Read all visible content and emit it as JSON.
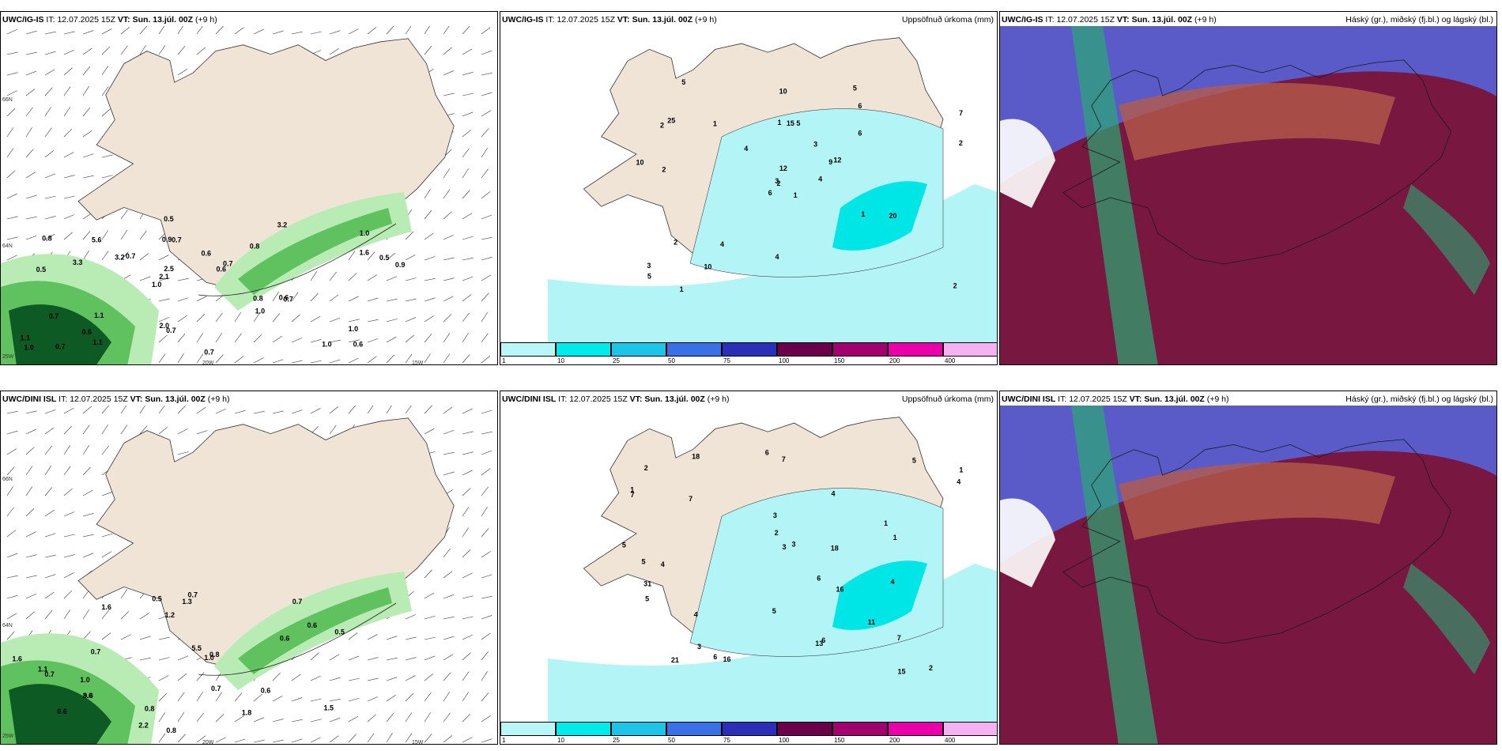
{
  "panels": [
    {
      "model": "UWC/IG-IS",
      "it_label": "IT:",
      "it": "12.07.2025 15Z",
      "vt_label": "VT:",
      "vt": "Sun. 13.júl. 00Z",
      "lead": "(+9 h)",
      "right": ""
    },
    {
      "model": "UWC/IG-IS",
      "it_label": "IT:",
      "it": "12.07.2025 15Z",
      "vt_label": "VT:",
      "vt": "Sun. 13.júl. 00Z",
      "lead": "(+9 h)",
      "right": "Uppsöfnuð úrkoma (mm)"
    },
    {
      "model": "UWC/IG-IS",
      "it_label": "IT:",
      "it": "12.07.2025 15Z",
      "vt_label": "VT:",
      "vt": "Sun. 13.júl. 00Z",
      "lead": "(+9 h)",
      "right": "Háský (gr.), miðský (fj.bl.) og lágský (bl.)"
    },
    {
      "model": "UWC/DINI ISL",
      "it_label": "IT:",
      "it": "12.07.2025 15Z",
      "vt_label": "VT:",
      "vt": "Sun. 13.júl. 00Z",
      "lead": "(+9 h)",
      "right": ""
    },
    {
      "model": "UWC/DINI ISL",
      "it_label": "IT:",
      "it": "12.07.2025 15Z",
      "vt_label": "VT:",
      "vt": "Sun. 13.júl. 00Z",
      "lead": "(+9 h)",
      "right": "Uppsöfnuð úrkoma (mm)"
    },
    {
      "model": "UWC/DINI ISL",
      "it_label": "IT:",
      "it": "12.07.2025 15Z",
      "vt_label": "VT:",
      "vt": "Sun. 13.júl. 00Z",
      "lead": "(+9 h)",
      "right": "Háský (gr.), miðský (fj.bl.) og lágský (bl.)"
    }
  ],
  "axis_labels": {
    "lat66": "66N",
    "lat64": "64N",
    "lon25": "25W",
    "lon20": "20W",
    "lon15": "15W"
  },
  "colorbar": {
    "ticks": [
      "1",
      "10",
      "25",
      "50",
      "75",
      "100",
      "150",
      "200",
      "400"
    ],
    "colors": [
      "#b8f6f8",
      "#00eaea",
      "#1ec4e8",
      "#3a6fe6",
      "#2b2fb8",
      "#6a004a",
      "#a2006e",
      "#ea00a8",
      "#f4b2f0"
    ]
  },
  "colors": {
    "land": "#f0e4d6",
    "precip": "#b3f4f6",
    "precip_heavy": "#00e6e6",
    "green_light": "#b8ecb4",
    "green_mid": "#5fc25f",
    "green_dark": "#0d5a24",
    "cloud_high": "#5a5ac8",
    "cloud_low": "#7a1438",
    "cloud_mid": "#b45a4a",
    "cloud_green": "#2aa874"
  },
  "map1_values": [
    "0.6",
    "0.5",
    "1.0",
    "1.0",
    "0.8",
    "0.7",
    "0.9",
    "0.6",
    "0.7",
    "0.7",
    "1.1",
    "0.6",
    "0.7",
    "0.7",
    "0.7",
    "0.8",
    "0.5",
    "0.9",
    "0.8",
    "1.6",
    "2.1",
    "2.0",
    "2.5",
    "5.6",
    "3.2",
    "1.1",
    "1.0",
    "1.0",
    "0.6",
    "0.7",
    "3.2",
    "3.3",
    "1.0",
    "1.1",
    "0.5",
    "0.6",
    "1.0",
    "0.7"
  ],
  "map2_values": [
    "1",
    "2",
    "2",
    "3",
    "9",
    "4",
    "5",
    "5",
    "6",
    "4",
    "5",
    "2",
    "2",
    "7",
    "6",
    "6",
    "1",
    "1",
    "3",
    "2",
    "4",
    "5",
    "10",
    "15",
    "12",
    "20",
    "25",
    "10",
    "10",
    "1",
    "2",
    "3",
    "4",
    "12",
    "1"
  ],
  "map4_values": [
    "0.6",
    "0.7",
    "1.6",
    "0.6",
    "0.7",
    "0.7",
    "1.0",
    "0.6",
    "0.5",
    "0.6",
    "1.1",
    "0.7",
    "0.6",
    "1.0",
    "0.8",
    "0.5",
    "1.5",
    "1.6",
    "3.0",
    "2.2",
    "1.8",
    "1.3",
    "1.2",
    "0.8",
    "5.5",
    "0.8",
    "0.7"
  ],
  "map5_values": [
    "5",
    "7",
    "1",
    "1",
    "1",
    "2",
    "4",
    "4",
    "3",
    "5",
    "3",
    "4",
    "6",
    "7",
    "7",
    "4",
    "6",
    "5",
    "6",
    "5",
    "11",
    "7",
    "4",
    "2",
    "3",
    "3",
    "16",
    "18",
    "16",
    "13",
    "31",
    "15",
    "18",
    "21",
    "6",
    "5",
    "1",
    "2"
  ]
}
